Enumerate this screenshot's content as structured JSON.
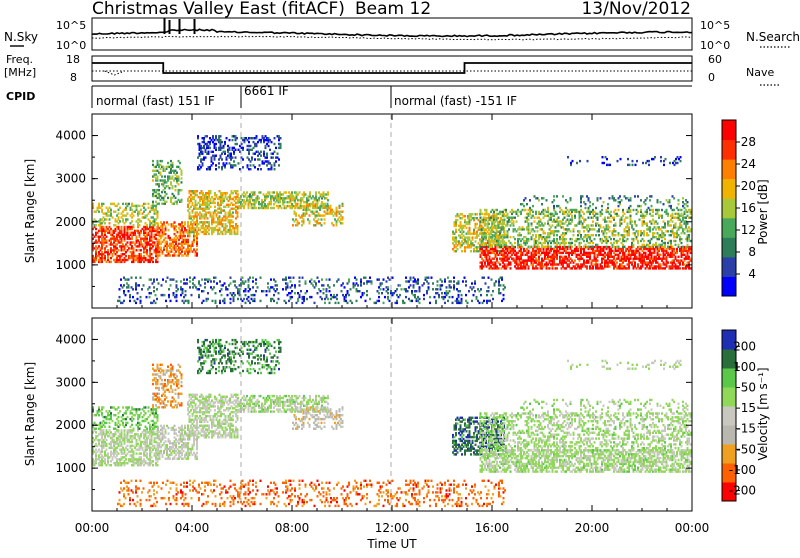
{
  "header": {
    "title": "Christmas Valley East (fitACF)",
    "beam": "Beam 12",
    "date": "13/Nov/2012"
  },
  "top_panels": {
    "nsky_label": "N.Sky",
    "nsky_ticks": [
      "10^5",
      "10^0"
    ],
    "nsearch_label": "N.Search",
    "nsearch_ticks": [
      "10^5",
      "10^0"
    ],
    "freq_label_1": "Freq.",
    "freq_label_2": "[MHz]",
    "freq_ticks": [
      "18",
      "8"
    ],
    "nave_label": "Nave",
    "nave_ticks": [
      "60",
      "0"
    ],
    "cpid_label": "CPID",
    "cpid_segments": [
      {
        "label": "normal (fast) 151 IF",
        "start_hour": 0
      },
      {
        "label": "6661 IF",
        "start_hour": 6
      },
      {
        "label": "normal (fast) -151 IF",
        "start_hour": 12
      }
    ]
  },
  "colors": {
    "power_scale": [
      "#0000ff",
      "#2a3fa8",
      "#2e7d5a",
      "#4aa85a",
      "#a8c83c",
      "#f0b400",
      "#ff7f00",
      "#ff3000",
      "#ff0000"
    ],
    "velocity_scale": [
      "#1f2fb4",
      "#2a6e3c",
      "#5cc84a",
      "#90d858",
      "#c8c8c0",
      "#b8b8b0",
      "#f0a020",
      "#ff6000",
      "#ff0000"
    ]
  },
  "chart_data": [
    {
      "type": "heatmap",
      "name": "power",
      "ylabel": "Slant Range [km]",
      "yticks": [
        "1000",
        "2000",
        "3000",
        "4000"
      ],
      "ylim": [
        0,
        4500
      ],
      "colorbar_label": "Power [dB]",
      "colorbar_ticks": [
        "4",
        "8",
        "12",
        "16",
        "20",
        "24",
        "28"
      ],
      "colorbar_range": [
        0,
        32
      ]
    },
    {
      "type": "heatmap",
      "name": "velocity",
      "ylabel": "Slant Range [km]",
      "yticks": [
        "1000",
        "2000",
        "3000",
        "4000"
      ],
      "ylim": [
        0,
        4500
      ],
      "colorbar_label": "Velocity [m s⁻¹]",
      "colorbar_ticks": [
        "200",
        "100",
        "50",
        "15",
        "-15",
        "-50",
        "-100",
        "-200"
      ]
    }
  ],
  "x_axis": {
    "label": "Time UT",
    "ticks": [
      "00:00",
      "04:00",
      "08:00",
      "12:00",
      "16:00",
      "20:00",
      "00:00"
    ],
    "range_hours": [
      0,
      24
    ]
  }
}
